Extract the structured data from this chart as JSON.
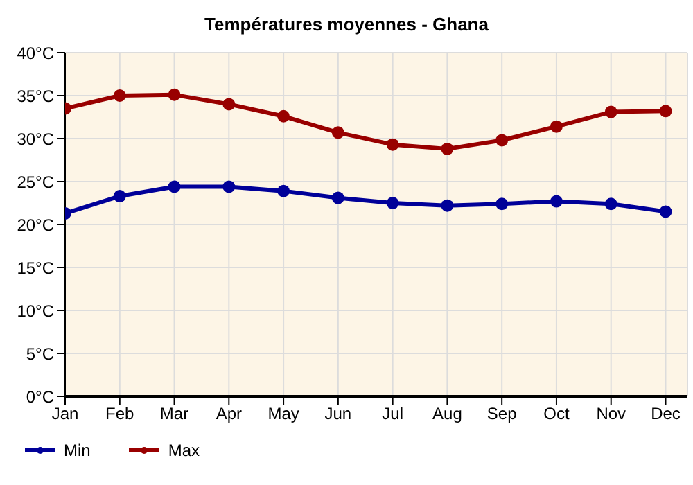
{
  "chart_data": {
    "type": "line",
    "title": "Températures moyennes - Ghana",
    "categories": [
      "Jan",
      "Feb",
      "Mar",
      "Apr",
      "May",
      "Jun",
      "Jul",
      "Aug",
      "Sep",
      "Oct",
      "Nov",
      "Dec"
    ],
    "series": [
      {
        "name": "Min",
        "color": "#000099",
        "values": [
          21.3,
          23.3,
          24.4,
          24.4,
          23.9,
          23.1,
          22.5,
          22.2,
          22.4,
          22.7,
          22.4,
          21.5
        ]
      },
      {
        "name": "Max",
        "color": "#990000",
        "values": [
          33.5,
          35.0,
          35.1,
          34.0,
          32.6,
          30.7,
          29.3,
          28.8,
          29.8,
          31.4,
          33.1,
          33.2
        ]
      }
    ],
    "ylim": [
      0,
      40
    ],
    "yticks": [
      {
        "value": 0,
        "label": "0°C"
      },
      {
        "value": 5,
        "label": "5°C"
      },
      {
        "value": 10,
        "label": "10°C"
      },
      {
        "value": 15,
        "label": "15°C"
      },
      {
        "value": 20,
        "label": "20°C"
      },
      {
        "value": 25,
        "label": "25°C"
      },
      {
        "value": 30,
        "label": "30°C"
      },
      {
        "value": 35,
        "label": "35°C"
      },
      {
        "value": 40,
        "label": "40°C"
      }
    ],
    "grid": true,
    "legend": "bottom left",
    "marker": "circle",
    "line_style": "solid"
  }
}
